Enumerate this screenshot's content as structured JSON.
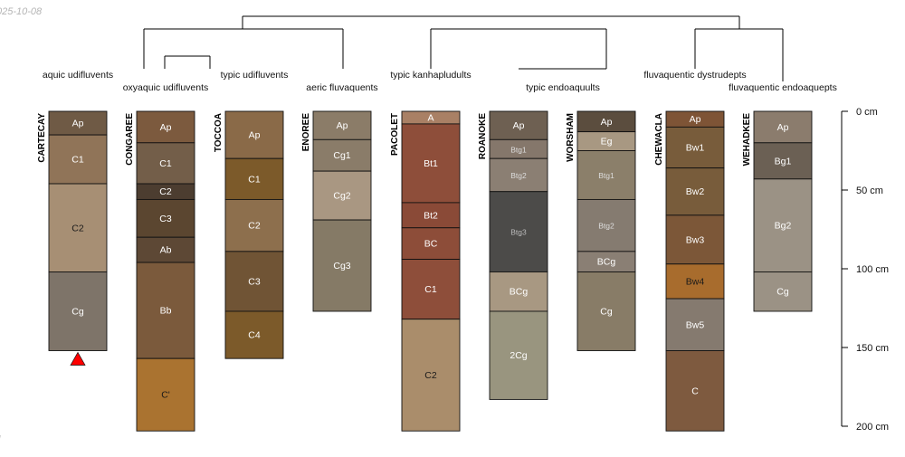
{
  "date_stamp": "025-10-08",
  "footer_mark": "l",
  "depth_axis": {
    "max": 200,
    "ticks": [
      {
        "depth": 0,
        "label": "0 cm"
      },
      {
        "depth": 50,
        "label": "50 cm"
      },
      {
        "depth": 100,
        "label": "100 cm"
      },
      {
        "depth": 150,
        "label": "150 cm"
      },
      {
        "depth": 200,
        "label": "200 cm"
      }
    ]
  },
  "profiles": [
    {
      "name": "CARTECAY",
      "taxon": "aquic udifluvents",
      "marker": "red-triangle",
      "horizons": [
        {
          "name": "Ap",
          "top": 0,
          "bottom": 15,
          "color": "#6f5a45",
          "text": "#ffffff"
        },
        {
          "name": "C1",
          "top": 15,
          "bottom": 46,
          "color": "#907458",
          "text": "#ffffff"
        },
        {
          "name": "C2",
          "top": 46,
          "bottom": 102,
          "color": "#a78f74",
          "text": "#1a1a1a"
        },
        {
          "name": "Cg",
          "top": 102,
          "bottom": 152,
          "color": "#7e7469",
          "text": "#ffffff"
        }
      ]
    },
    {
      "name": "CONGAREE",
      "taxon": "oxyaquic udifluvents",
      "horizons": [
        {
          "name": "Ap",
          "top": 0,
          "bottom": 20,
          "color": "#7c5a3e",
          "text": "#ffffff"
        },
        {
          "name": "C1",
          "top": 20,
          "bottom": 46,
          "color": "#735e49",
          "text": "#ffffff"
        },
        {
          "name": "C2",
          "top": 46,
          "bottom": 56,
          "color": "#4c3d30",
          "text": "#ffffff"
        },
        {
          "name": "C3",
          "top": 56,
          "bottom": 80,
          "color": "#5b4630",
          "text": "#ffffff"
        },
        {
          "name": "Ab",
          "top": 80,
          "bottom": 96,
          "color": "#5d4835",
          "text": "#ffffff"
        },
        {
          "name": "Bb",
          "top": 96,
          "bottom": 157,
          "color": "#7b5a3c",
          "text": "#ffffff"
        },
        {
          "name": "C'",
          "top": 157,
          "bottom": 203,
          "color": "#aa7330",
          "text": "#1a1a1a"
        }
      ]
    },
    {
      "name": "TOCCOA",
      "taxon": "typic udifluvents",
      "horizons": [
        {
          "name": "Ap",
          "top": 0,
          "bottom": 30,
          "color": "#8a6a48",
          "text": "#ffffff"
        },
        {
          "name": "C1",
          "top": 30,
          "bottom": 56,
          "color": "#7c5a2a",
          "text": "#ffffff"
        },
        {
          "name": "C2",
          "top": 56,
          "bottom": 89,
          "color": "#8d6f4d",
          "text": "#ffffff"
        },
        {
          "name": "C3",
          "top": 89,
          "bottom": 127,
          "color": "#705435",
          "text": "#ffffff"
        },
        {
          "name": "C4",
          "top": 127,
          "bottom": 157,
          "color": "#7c5a2a",
          "text": "#ffffff"
        }
      ]
    },
    {
      "name": "ENOREE",
      "taxon": "aeric fluvaquents",
      "horizons": [
        {
          "name": "Ap",
          "top": 0,
          "bottom": 18,
          "color": "#8b7c68",
          "text": "#ffffff"
        },
        {
          "name": "Cg1",
          "top": 18,
          "bottom": 38,
          "color": "#8a7c69",
          "text": "#ffffff"
        },
        {
          "name": "Cg2",
          "top": 38,
          "bottom": 69,
          "color": "#a99782",
          "text": "#ffffff"
        },
        {
          "name": "Cg3",
          "top": 69,
          "bottom": 127,
          "color": "#857a66",
          "text": "#ffffff"
        }
      ]
    },
    {
      "name": "PACOLET",
      "taxon": "typic kanhapludults",
      "horizons": [
        {
          "name": "A",
          "top": 0,
          "bottom": 8,
          "color": "#a98065",
          "text": "#ffffff"
        },
        {
          "name": "Bt1",
          "top": 8,
          "bottom": 58,
          "color": "#8e4e3a",
          "text": "#ffffff"
        },
        {
          "name": "Bt2",
          "top": 58,
          "bottom": 74,
          "color": "#8a4a37",
          "text": "#ffffff"
        },
        {
          "name": "BC",
          "top": 74,
          "bottom": 94,
          "color": "#8d4d39",
          "text": "#ffffff"
        },
        {
          "name": "C1",
          "top": 94,
          "bottom": 132,
          "color": "#8e4e3a",
          "text": "#ffffff"
        },
        {
          "name": "C2",
          "top": 132,
          "bottom": 203,
          "color": "#aa8d6b",
          "text": "#1a1a1a"
        }
      ]
    },
    {
      "name": "ROANOKE",
      "taxon": "typic endoaquults",
      "horizons": [
        {
          "name": "Ap",
          "top": 0,
          "bottom": 18,
          "color": "#6e6052",
          "text": "#ffffff"
        },
        {
          "name": "Btg1",
          "top": 18,
          "bottom": 30,
          "color": "#85776b",
          "text": "#dddddd"
        },
        {
          "name": "Btg2",
          "top": 30,
          "bottom": 51,
          "color": "#8b7f73",
          "text": "#dddddd"
        },
        {
          "name": "Btg3",
          "top": 51,
          "bottom": 102,
          "color": "#4c4b49",
          "text": "#bbbbbb"
        },
        {
          "name": "BCg",
          "top": 102,
          "bottom": 127,
          "color": "#a89882",
          "text": "#ffffff"
        },
        {
          "name": "2Cg",
          "top": 127,
          "bottom": 183,
          "color": "#99957f",
          "text": "#ffffff"
        }
      ]
    },
    {
      "name": "WORSHAM",
      "taxon": "typic endoaquults",
      "horizons": [
        {
          "name": "Ap",
          "top": 0,
          "bottom": 13,
          "color": "#5b4d3e",
          "text": "#ffffff"
        },
        {
          "name": "Eg",
          "top": 13,
          "bottom": 25,
          "color": "#a89882",
          "text": "#ffffff"
        },
        {
          "name": "Btg1",
          "top": 25,
          "bottom": 56,
          "color": "#8b7f6a",
          "text": "#dddddd"
        },
        {
          "name": "Btg2",
          "top": 56,
          "bottom": 89,
          "color": "#857b70",
          "text": "#dddddd"
        },
        {
          "name": "BCg",
          "top": 89,
          "bottom": 102,
          "color": "#8a7f74",
          "text": "#ffffff"
        },
        {
          "name": "Cg",
          "top": 102,
          "bottom": 152,
          "color": "#887c67",
          "text": "#ffffff"
        }
      ]
    },
    {
      "name": "CHEWACLA",
      "taxon": "fluvaquentic dystrudepts",
      "horizons": [
        {
          "name": "Ap",
          "top": 0,
          "bottom": 10,
          "color": "#7e5436",
          "text": "#ffffff"
        },
        {
          "name": "Bw1",
          "top": 10,
          "bottom": 36,
          "color": "#785c3b",
          "text": "#ffffff"
        },
        {
          "name": "Bw2",
          "top": 36,
          "bottom": 66,
          "color": "#785c3b",
          "text": "#ffffff"
        },
        {
          "name": "Bw3",
          "top": 66,
          "bottom": 97,
          "color": "#7c5738",
          "text": "#ffffff"
        },
        {
          "name": "Bw4",
          "top": 97,
          "bottom": 119,
          "color": "#a86c2d",
          "text": "#1a1a1a"
        },
        {
          "name": "Bw5",
          "top": 119,
          "bottom": 152,
          "color": "#857a6f",
          "text": "#ffffff"
        },
        {
          "name": "C",
          "top": 152,
          "bottom": 203,
          "color": "#7e5a3f",
          "text": "#ffffff"
        }
      ]
    },
    {
      "name": "WEHADKEE",
      "taxon": "fluvaquentic endoaquepts",
      "horizons": [
        {
          "name": "Ap",
          "top": 0,
          "bottom": 20,
          "color": "#8b7c6d",
          "text": "#ffffff"
        },
        {
          "name": "Bg1",
          "top": 20,
          "bottom": 43,
          "color": "#6b6054",
          "text": "#ffffff"
        },
        {
          "name": "Bg2",
          "top": 43,
          "bottom": 102,
          "color": "#9b9285",
          "text": "#ffffff"
        },
        {
          "name": "Cg",
          "top": 102,
          "bottom": 127,
          "color": "#9b9285",
          "text": "#ffffff"
        }
      ]
    }
  ]
}
